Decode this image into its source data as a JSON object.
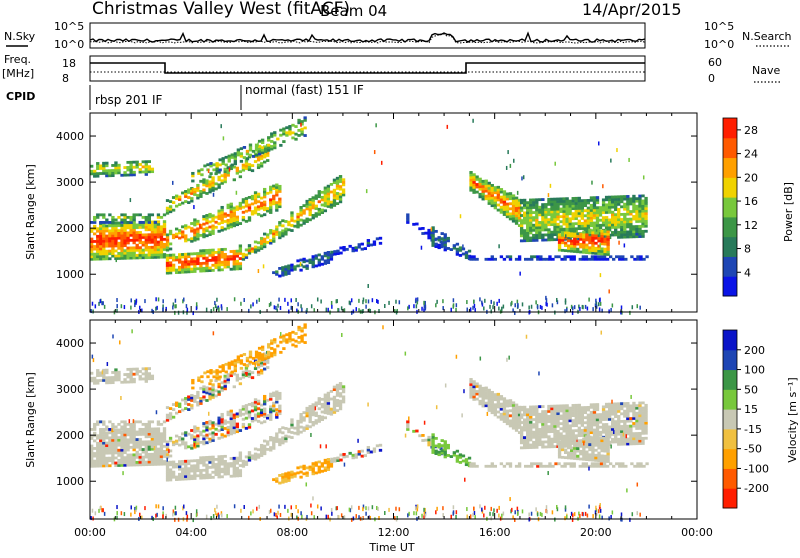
{
  "header": {
    "station": "Christmas Valley West (fitACF)",
    "beam": "Beam 04",
    "date": "14/Apr/2015"
  },
  "top_panels": {
    "nsky_label": "N.Sky",
    "nsky_ticks": [
      "10^5",
      "10^0"
    ],
    "nsearch_label": "N.Search",
    "nsearch_ticks": [
      "10^5",
      "10^0"
    ],
    "freq_label": "Freq.",
    "freq_unit": "[MHz]",
    "freq_ticks": [
      "18",
      "8"
    ],
    "nave_label": "Nave",
    "nave_ticks": [
      "60",
      "0"
    ],
    "cpid_label": "CPID",
    "cpid_modes": [
      "rbsp 201 IF",
      "normal (fast) 151 IF"
    ]
  },
  "colors": {
    "power_scale": [
      "#0a14e6",
      "#1e46b4",
      "#287a5a",
      "#3c9646",
      "#78c83c",
      "#f0d200",
      "#ffa000",
      "#ff5a00",
      "#ff1e00"
    ],
    "velocity_scale": [
      "#ff1e00",
      "#ff5a00",
      "#ffa000",
      "#f0c040",
      "#c8c8b4",
      "#78c83c",
      "#3c9646",
      "#1e46b4",
      "#0a14c8"
    ],
    "ground_scatter": "#c8c8b4"
  },
  "chart_data": [
    {
      "type": "heatmap",
      "name": "power",
      "xlabel": "Time UT",
      "ylabel": "Slant Range [km]",
      "xlim": [
        0,
        24
      ],
      "ylim": [
        180,
        4500
      ],
      "x_ticks": [
        "00:00",
        "04:00",
        "08:00",
        "12:00",
        "16:00",
        "20:00",
        "00:00"
      ],
      "y_ticks": [
        1000,
        2000,
        3000,
        4000
      ],
      "colorbar_label": "Power [dB]",
      "colorbar_ticks": [
        4,
        8,
        12,
        16,
        20,
        24,
        28
      ],
      "clim": [
        0,
        30
      ]
    },
    {
      "type": "heatmap",
      "name": "velocity",
      "xlabel": "Time UT",
      "ylabel": "Slant Range [km]",
      "xlim": [
        0,
        24
      ],
      "ylim": [
        180,
        4500
      ],
      "x_ticks": [
        "00:00",
        "04:00",
        "08:00",
        "12:00",
        "16:00",
        "20:00",
        "00:00"
      ],
      "y_ticks": [
        1000,
        2000,
        3000,
        4000
      ],
      "colorbar_label": "Velocity [m s⁻¹]",
      "colorbar_ticks": [
        "200",
        "100",
        "50",
        "15",
        "-15",
        "-50",
        "-100",
        "-200"
      ]
    }
  ],
  "axis": {
    "time_label": "Time UT"
  }
}
